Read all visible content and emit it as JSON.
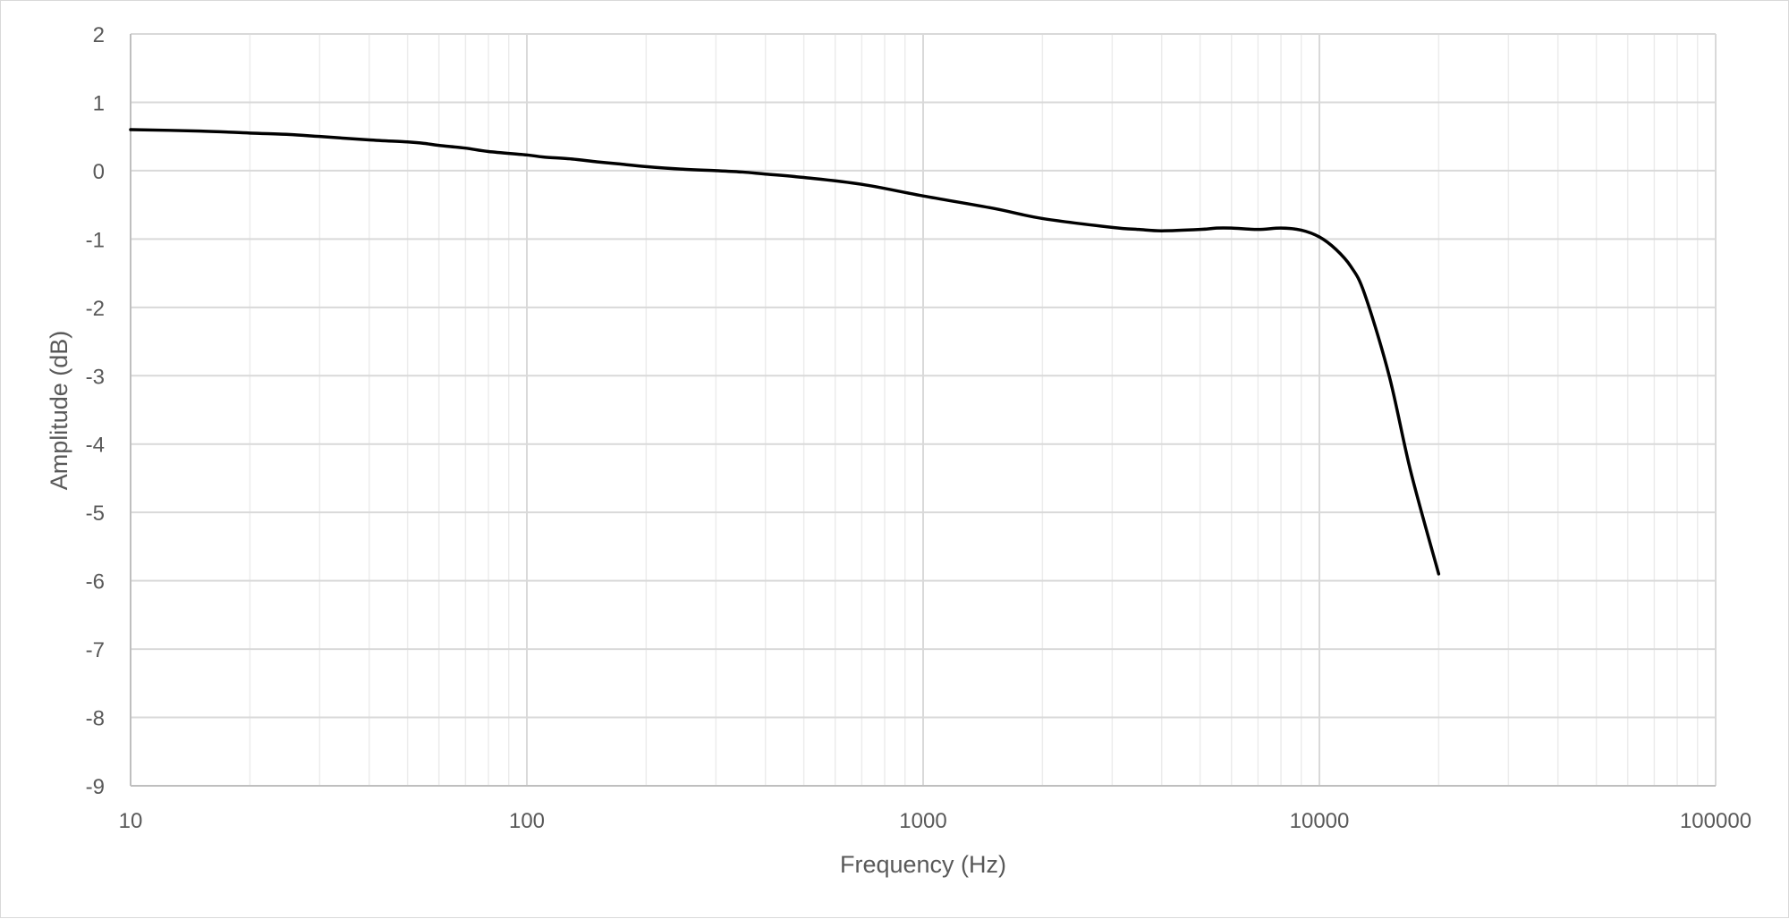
{
  "chart_data": {
    "type": "line",
    "title": "",
    "xlabel": "Frequency (Hz)",
    "ylabel": "Amplitude (dB)",
    "x_scale": "log",
    "xlim": [
      10,
      100000
    ],
    "ylim": [
      -9,
      2
    ],
    "x_ticks": [
      10,
      100,
      1000,
      10000,
      100000
    ],
    "x_tick_labels": [
      "10",
      "100",
      "1000",
      "10000",
      "100000"
    ],
    "y_ticks": [
      2,
      1,
      0,
      -1,
      -2,
      -3,
      -4,
      -5,
      -6,
      -7,
      -8,
      -9
    ],
    "y_tick_labels": [
      "2",
      "1",
      "0",
      "-1",
      "-2",
      "-3",
      "-4",
      "-5",
      "-6",
      "-7",
      "-8",
      "-9"
    ],
    "grid": true,
    "minor_grid": true,
    "legend": "none",
    "colors": {
      "line": "#000000",
      "major_grid": "#d9d9d9",
      "minor_grid": "#ececec",
      "text": "#595959"
    },
    "series": [
      {
        "x": [
          10,
          15,
          20,
          25,
          30,
          40,
          50,
          55,
          60,
          70,
          80,
          100,
          110,
          130,
          150,
          170,
          200,
          250,
          300,
          350,
          400,
          500,
          700,
          1000,
          1500,
          2000,
          3000,
          3500,
          4000,
          5000,
          5500,
          6000,
          7000,
          8000,
          9000,
          10000,
          11000,
          12000,
          13000,
          15000,
          17000,
          20000
        ],
        "y": [
          0.6,
          0.58,
          0.55,
          0.53,
          0.5,
          0.45,
          0.42,
          0.4,
          0.37,
          0.33,
          0.28,
          0.23,
          0.2,
          0.17,
          0.13,
          0.1,
          0.06,
          0.02,
          0.0,
          -0.02,
          -0.05,
          -0.1,
          -0.2,
          -0.37,
          -0.55,
          -0.7,
          -0.83,
          -0.86,
          -0.88,
          -0.86,
          -0.84,
          -0.84,
          -0.86,
          -0.84,
          -0.87,
          -0.97,
          -1.15,
          -1.4,
          -1.8,
          -3.0,
          -4.4,
          -5.9
        ]
      }
    ]
  }
}
